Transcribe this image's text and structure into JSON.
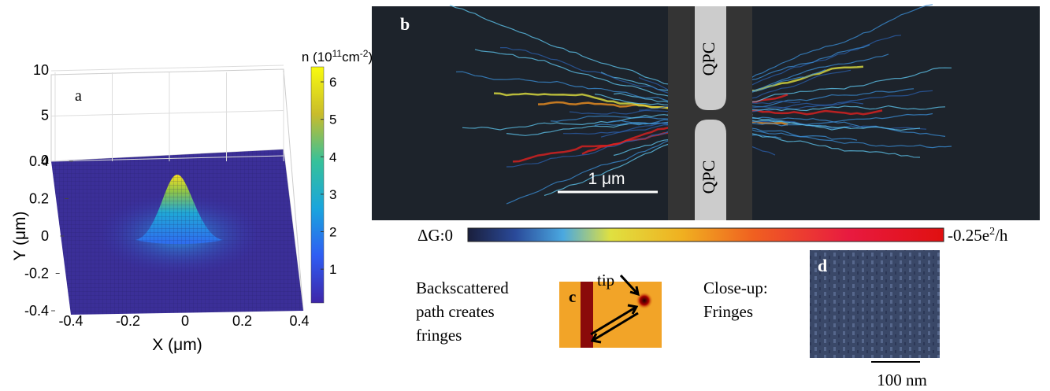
{
  "panel_a": {
    "label": "a",
    "colorbar_title": {
      "prefix": "n (10",
      "exp1": "11",
      "unit": "cm",
      "exp2": "-2",
      "suffix": ")"
    },
    "colorbar_lim": [
      0.1,
      6.4
    ],
    "colorbar_ticks": [
      1,
      2,
      3,
      4,
      5,
      6
    ],
    "zlim": [
      0,
      10
    ],
    "zticks": [
      0,
      5,
      10
    ],
    "xlim": [
      -0.4,
      0.4
    ],
    "xticks": [
      -0.4,
      -0.2,
      0,
      0.2,
      0.4
    ],
    "ylim": [
      -0.4,
      0.4
    ],
    "yticks": [
      -0.4,
      -0.2,
      0,
      0.2,
      0.4
    ],
    "x_label": "X (μm)",
    "y_label": "Y (μm)"
  },
  "panel_b": {
    "label": "b",
    "gate_labels": [
      "QPC",
      "QPC"
    ],
    "scale_bar": "1 μm",
    "colorbar_left": "ΔG:0",
    "colorbar_right": {
      "base": "-0.25e",
      "exp": "2",
      "suffix": "/h"
    }
  },
  "panel_c": {
    "label": "c",
    "caption": [
      "Backscattered",
      "path creates",
      "fringes"
    ],
    "tip": "tip"
  },
  "panel_d": {
    "label": "d",
    "caption": [
      "Close-up:",
      "Fringes"
    ],
    "scale_bar": "100 nm"
  }
}
